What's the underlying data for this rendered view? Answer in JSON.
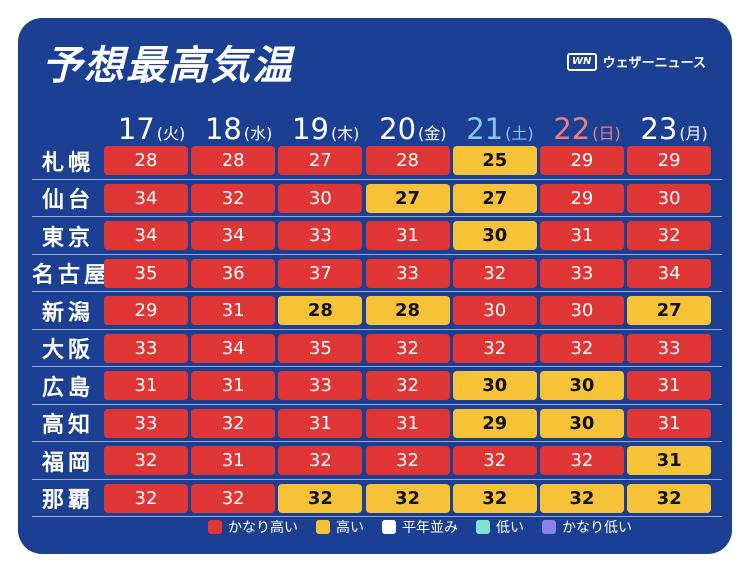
{
  "title": "予想最高気温",
  "brand": {
    "logo": "WN",
    "name": "ウェザーニュース"
  },
  "days": [
    {
      "date": "17",
      "weekday": "(火)",
      "color": "#ffffff"
    },
    {
      "date": "18",
      "weekday": "(水)",
      "color": "#ffffff"
    },
    {
      "date": "19",
      "weekday": "(木)",
      "color": "#ffffff"
    },
    {
      "date": "20",
      "weekday": "(金)",
      "color": "#ffffff"
    },
    {
      "date": "21",
      "weekday": "(土)",
      "color": "#88c8f0"
    },
    {
      "date": "22",
      "weekday": "(日)",
      "color": "#f07d7d"
    },
    {
      "date": "23",
      "weekday": "(月)",
      "color": "#ffffff"
    }
  ],
  "rows": [
    {
      "city": "札幌",
      "temps": [
        "28",
        "28",
        "27",
        "28",
        "25",
        "29",
        "29"
      ],
      "levels": [
        "veryhigh",
        "veryhigh",
        "veryhigh",
        "veryhigh",
        "high",
        "veryhigh",
        "veryhigh"
      ]
    },
    {
      "city": "仙台",
      "temps": [
        "34",
        "32",
        "30",
        "27",
        "27",
        "29",
        "30"
      ],
      "levels": [
        "veryhigh",
        "veryhigh",
        "veryhigh",
        "high",
        "high",
        "veryhigh",
        "veryhigh"
      ]
    },
    {
      "city": "東京",
      "temps": [
        "34",
        "34",
        "33",
        "31",
        "30",
        "31",
        "32"
      ],
      "levels": [
        "veryhigh",
        "veryhigh",
        "veryhigh",
        "veryhigh",
        "high",
        "veryhigh",
        "veryhigh"
      ]
    },
    {
      "city": "名古屋",
      "temps": [
        "35",
        "36",
        "37",
        "33",
        "32",
        "33",
        "34"
      ],
      "levels": [
        "veryhigh",
        "veryhigh",
        "veryhigh",
        "veryhigh",
        "veryhigh",
        "veryhigh",
        "veryhigh"
      ]
    },
    {
      "city": "新潟",
      "temps": [
        "29",
        "31",
        "28",
        "28",
        "30",
        "30",
        "27"
      ],
      "levels": [
        "veryhigh",
        "veryhigh",
        "high",
        "high",
        "veryhigh",
        "veryhigh",
        "high"
      ]
    },
    {
      "city": "大阪",
      "temps": [
        "33",
        "34",
        "35",
        "32",
        "32",
        "32",
        "33"
      ],
      "levels": [
        "veryhigh",
        "veryhigh",
        "veryhigh",
        "veryhigh",
        "veryhigh",
        "veryhigh",
        "veryhigh"
      ]
    },
    {
      "city": "広島",
      "temps": [
        "31",
        "31",
        "33",
        "32",
        "30",
        "30",
        "31"
      ],
      "levels": [
        "veryhigh",
        "veryhigh",
        "veryhigh",
        "veryhigh",
        "high",
        "high",
        "veryhigh"
      ]
    },
    {
      "city": "高知",
      "temps": [
        "33",
        "32",
        "31",
        "31",
        "29",
        "30",
        "31"
      ],
      "levels": [
        "veryhigh",
        "veryhigh",
        "veryhigh",
        "veryhigh",
        "high",
        "high",
        "veryhigh"
      ]
    },
    {
      "city": "福岡",
      "temps": [
        "32",
        "31",
        "32",
        "32",
        "32",
        "32",
        "31"
      ],
      "levels": [
        "veryhigh",
        "veryhigh",
        "veryhigh",
        "veryhigh",
        "veryhigh",
        "veryhigh",
        "high"
      ]
    },
    {
      "city": "那覇",
      "temps": [
        "32",
        "32",
        "32",
        "32",
        "32",
        "32",
        "32"
      ],
      "levels": [
        "veryhigh",
        "veryhigh",
        "high",
        "high",
        "high",
        "high",
        "high"
      ]
    }
  ],
  "legend": [
    {
      "label": "かなり高い",
      "color": "#e13636"
    },
    {
      "label": "高い",
      "color": "#f6c338"
    },
    {
      "label": "平年並み",
      "color": "#ffffff"
    },
    {
      "label": "低い",
      "color": "#7fe3d0"
    },
    {
      "label": "かなり低い",
      "color": "#8c82e6"
    }
  ]
}
